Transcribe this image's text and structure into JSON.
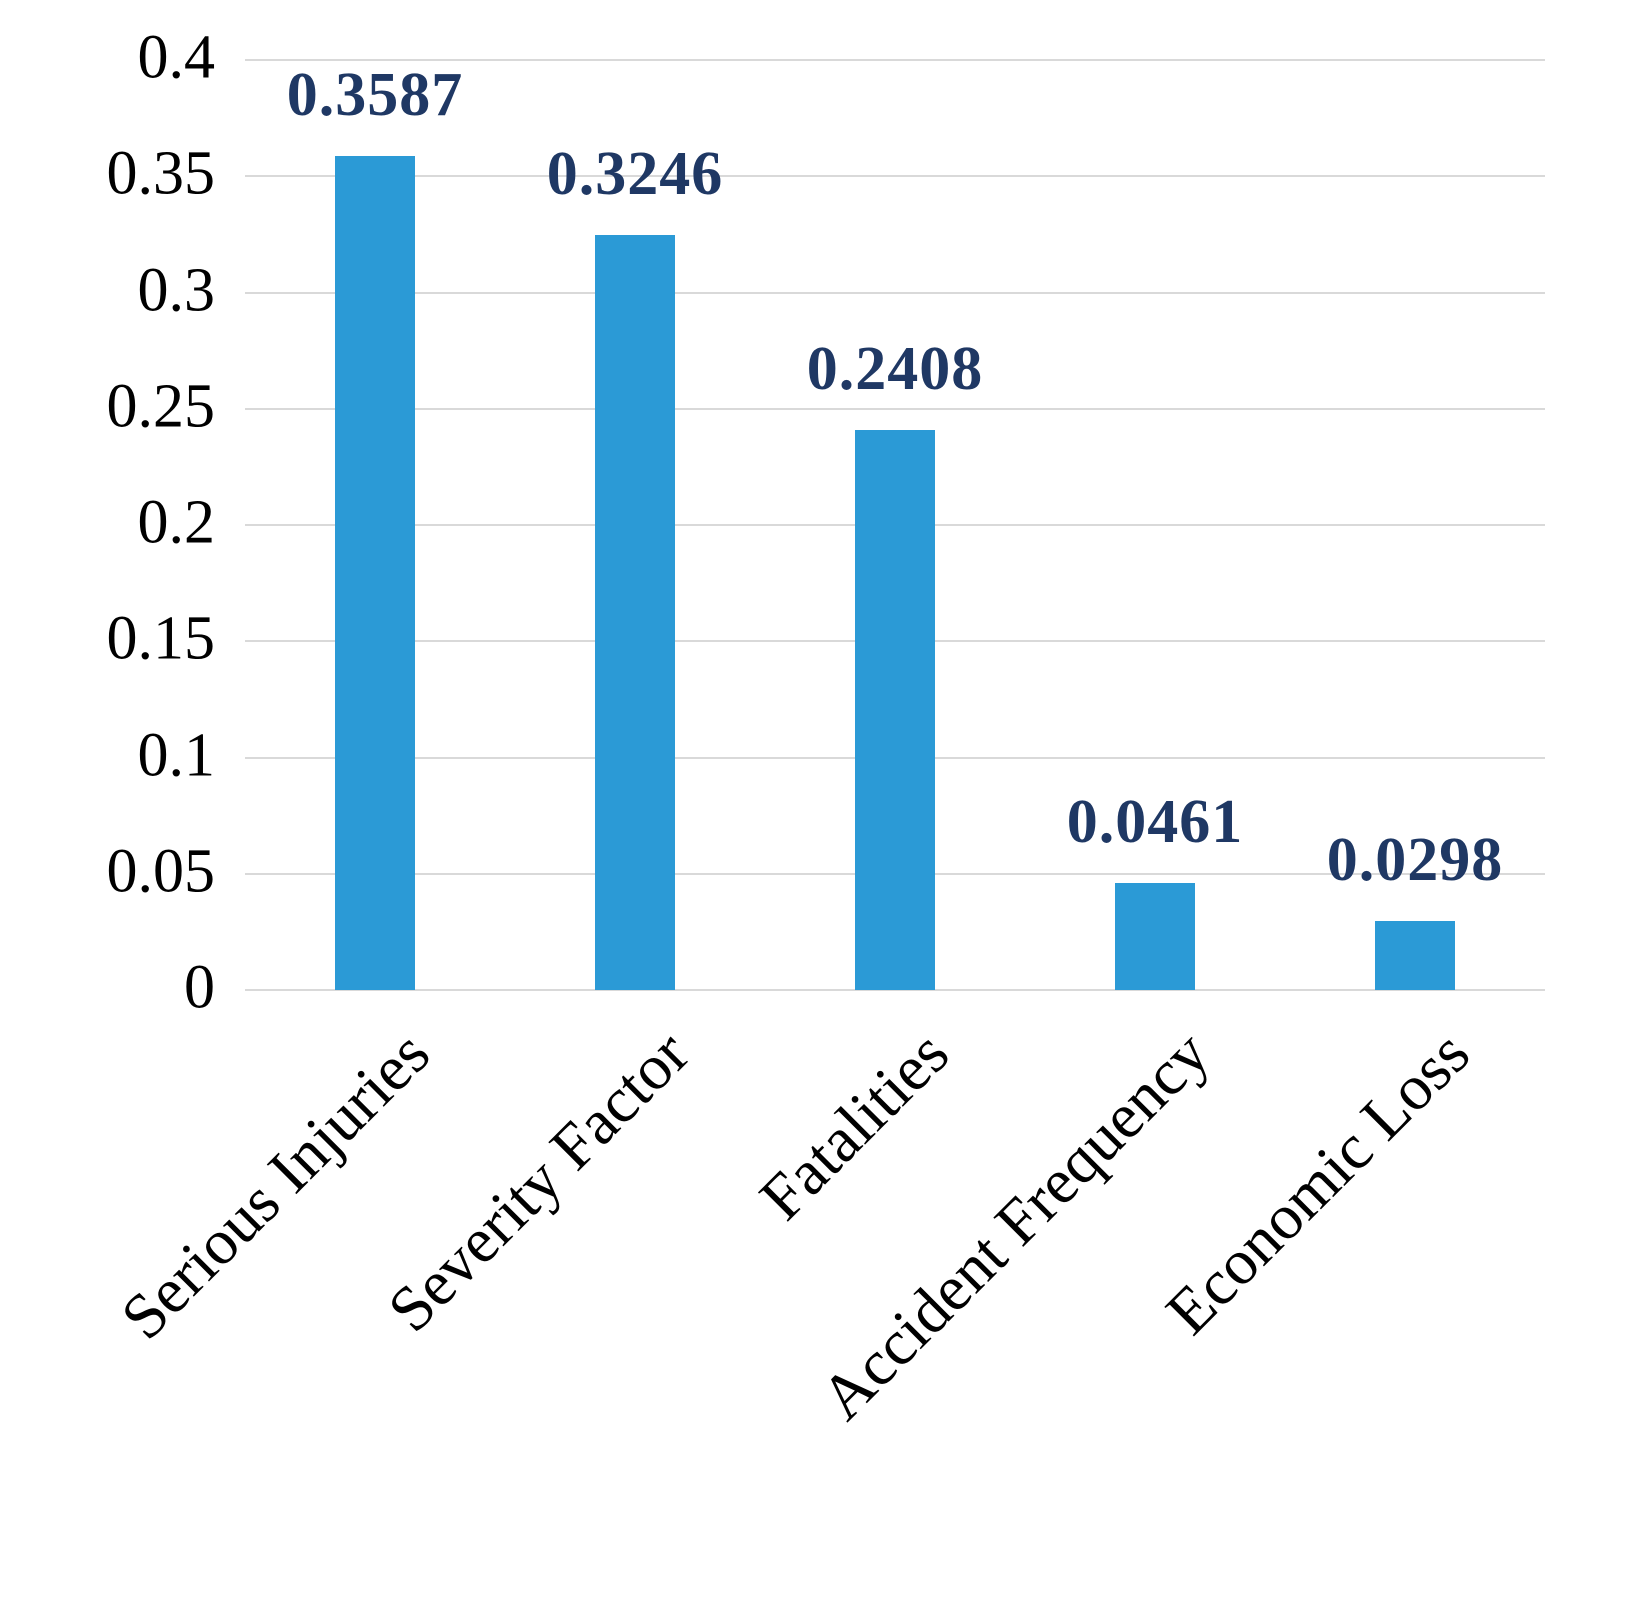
{
  "chart_data": {
    "type": "bar",
    "categories": [
      "Serious Injuries",
      "Severity Factor",
      "Fatalities",
      "Accident Frequency",
      "Economic Loss"
    ],
    "values": [
      0.3587,
      0.3246,
      0.2408,
      0.0461,
      0.0298
    ],
    "value_labels": [
      "0.3587",
      "0.3246",
      "0.2408",
      "0.0461",
      "0.0298"
    ],
    "title": "",
    "xlabel": "",
    "ylabel": "",
    "ylim": [
      0,
      0.4
    ],
    "ytick_step": 0.05,
    "yticks": [
      "0",
      "0.05",
      "0.1",
      "0.15",
      "0.2",
      "0.25",
      "0.3",
      "0.35",
      "0.4"
    ],
    "grid": true,
    "legend": "none",
    "bar_color": "#2b9ad6",
    "value_label_color": "#1f3864",
    "axis_text_color": "#000000",
    "gridline_color": "#d9d9d9"
  }
}
